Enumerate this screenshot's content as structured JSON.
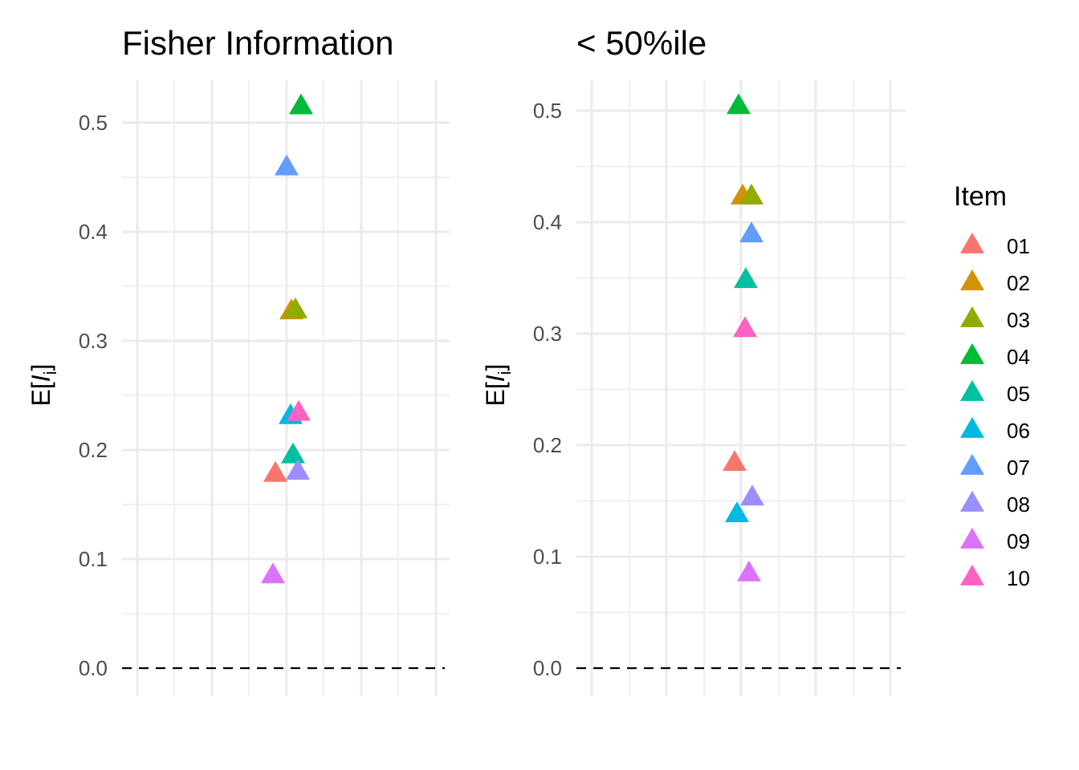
{
  "chart_data": [
    {
      "type": "scatter",
      "title": "Fisher Information",
      "ylabel": "E[I_i]",
      "ylabel_parts": {
        "prefix": "E[",
        "italic": "I",
        "sub": "i",
        "suffix": "]"
      },
      "ylim": [
        0,
        0.5
      ],
      "yticks": [
        "0.0",
        "0.1",
        "0.2",
        "0.3",
        "0.4",
        "0.5"
      ],
      "reference_line": {
        "y": 0.0,
        "style": "dashed"
      },
      "marker": "triangle",
      "grid": true,
      "series": [
        {
          "name": "01",
          "y": 0.178
        },
        {
          "name": "02",
          "y": 0.327
        },
        {
          "name": "03",
          "y": 0.328
        },
        {
          "name": "04",
          "y": 0.515
        },
        {
          "name": "05",
          "y": 0.195
        },
        {
          "name": "06",
          "y": 0.231
        },
        {
          "name": "07",
          "y": 0.459
        },
        {
          "name": "08",
          "y": 0.18
        },
        {
          "name": "09",
          "y": 0.085
        },
        {
          "name": "10",
          "y": 0.234
        }
      ]
    },
    {
      "type": "scatter",
      "title": "< 50%ile",
      "ylabel": "E[I_i]",
      "ylabel_parts": {
        "prefix": "E[",
        "italic": "I",
        "sub": "i",
        "suffix": "]"
      },
      "ylim": [
        0,
        0.5
      ],
      "yticks": [
        "0.0",
        "0.1",
        "0.2",
        "0.3",
        "0.4",
        "0.5"
      ],
      "reference_line": {
        "y": 0.0,
        "style": "dashed"
      },
      "marker": "triangle",
      "grid": true,
      "series": [
        {
          "name": "01",
          "y": 0.184
        },
        {
          "name": "02",
          "y": 0.423
        },
        {
          "name": "03",
          "y": 0.423
        },
        {
          "name": "04",
          "y": 0.504
        },
        {
          "name": "05",
          "y": 0.348
        },
        {
          "name": "06",
          "y": 0.138
        },
        {
          "name": "07",
          "y": 0.389
        },
        {
          "name": "08",
          "y": 0.153
        },
        {
          "name": "09",
          "y": 0.085
        },
        {
          "name": "10",
          "y": 0.304
        }
      ]
    }
  ],
  "legend": {
    "title": "Item",
    "position": "right",
    "items": [
      {
        "label": "01",
        "color": "#F8766D"
      },
      {
        "label": "02",
        "color": "#D39200"
      },
      {
        "label": "03",
        "color": "#93AA00"
      },
      {
        "label": "04",
        "color": "#00BA38"
      },
      {
        "label": "05",
        "color": "#00C19F"
      },
      {
        "label": "06",
        "color": "#00B9E3"
      },
      {
        "label": "07",
        "color": "#619CFF"
      },
      {
        "label": "08",
        "color": "#9B8EFF"
      },
      {
        "label": "09",
        "color": "#DB72FB"
      },
      {
        "label": "10",
        "color": "#FF61C3"
      }
    ]
  }
}
